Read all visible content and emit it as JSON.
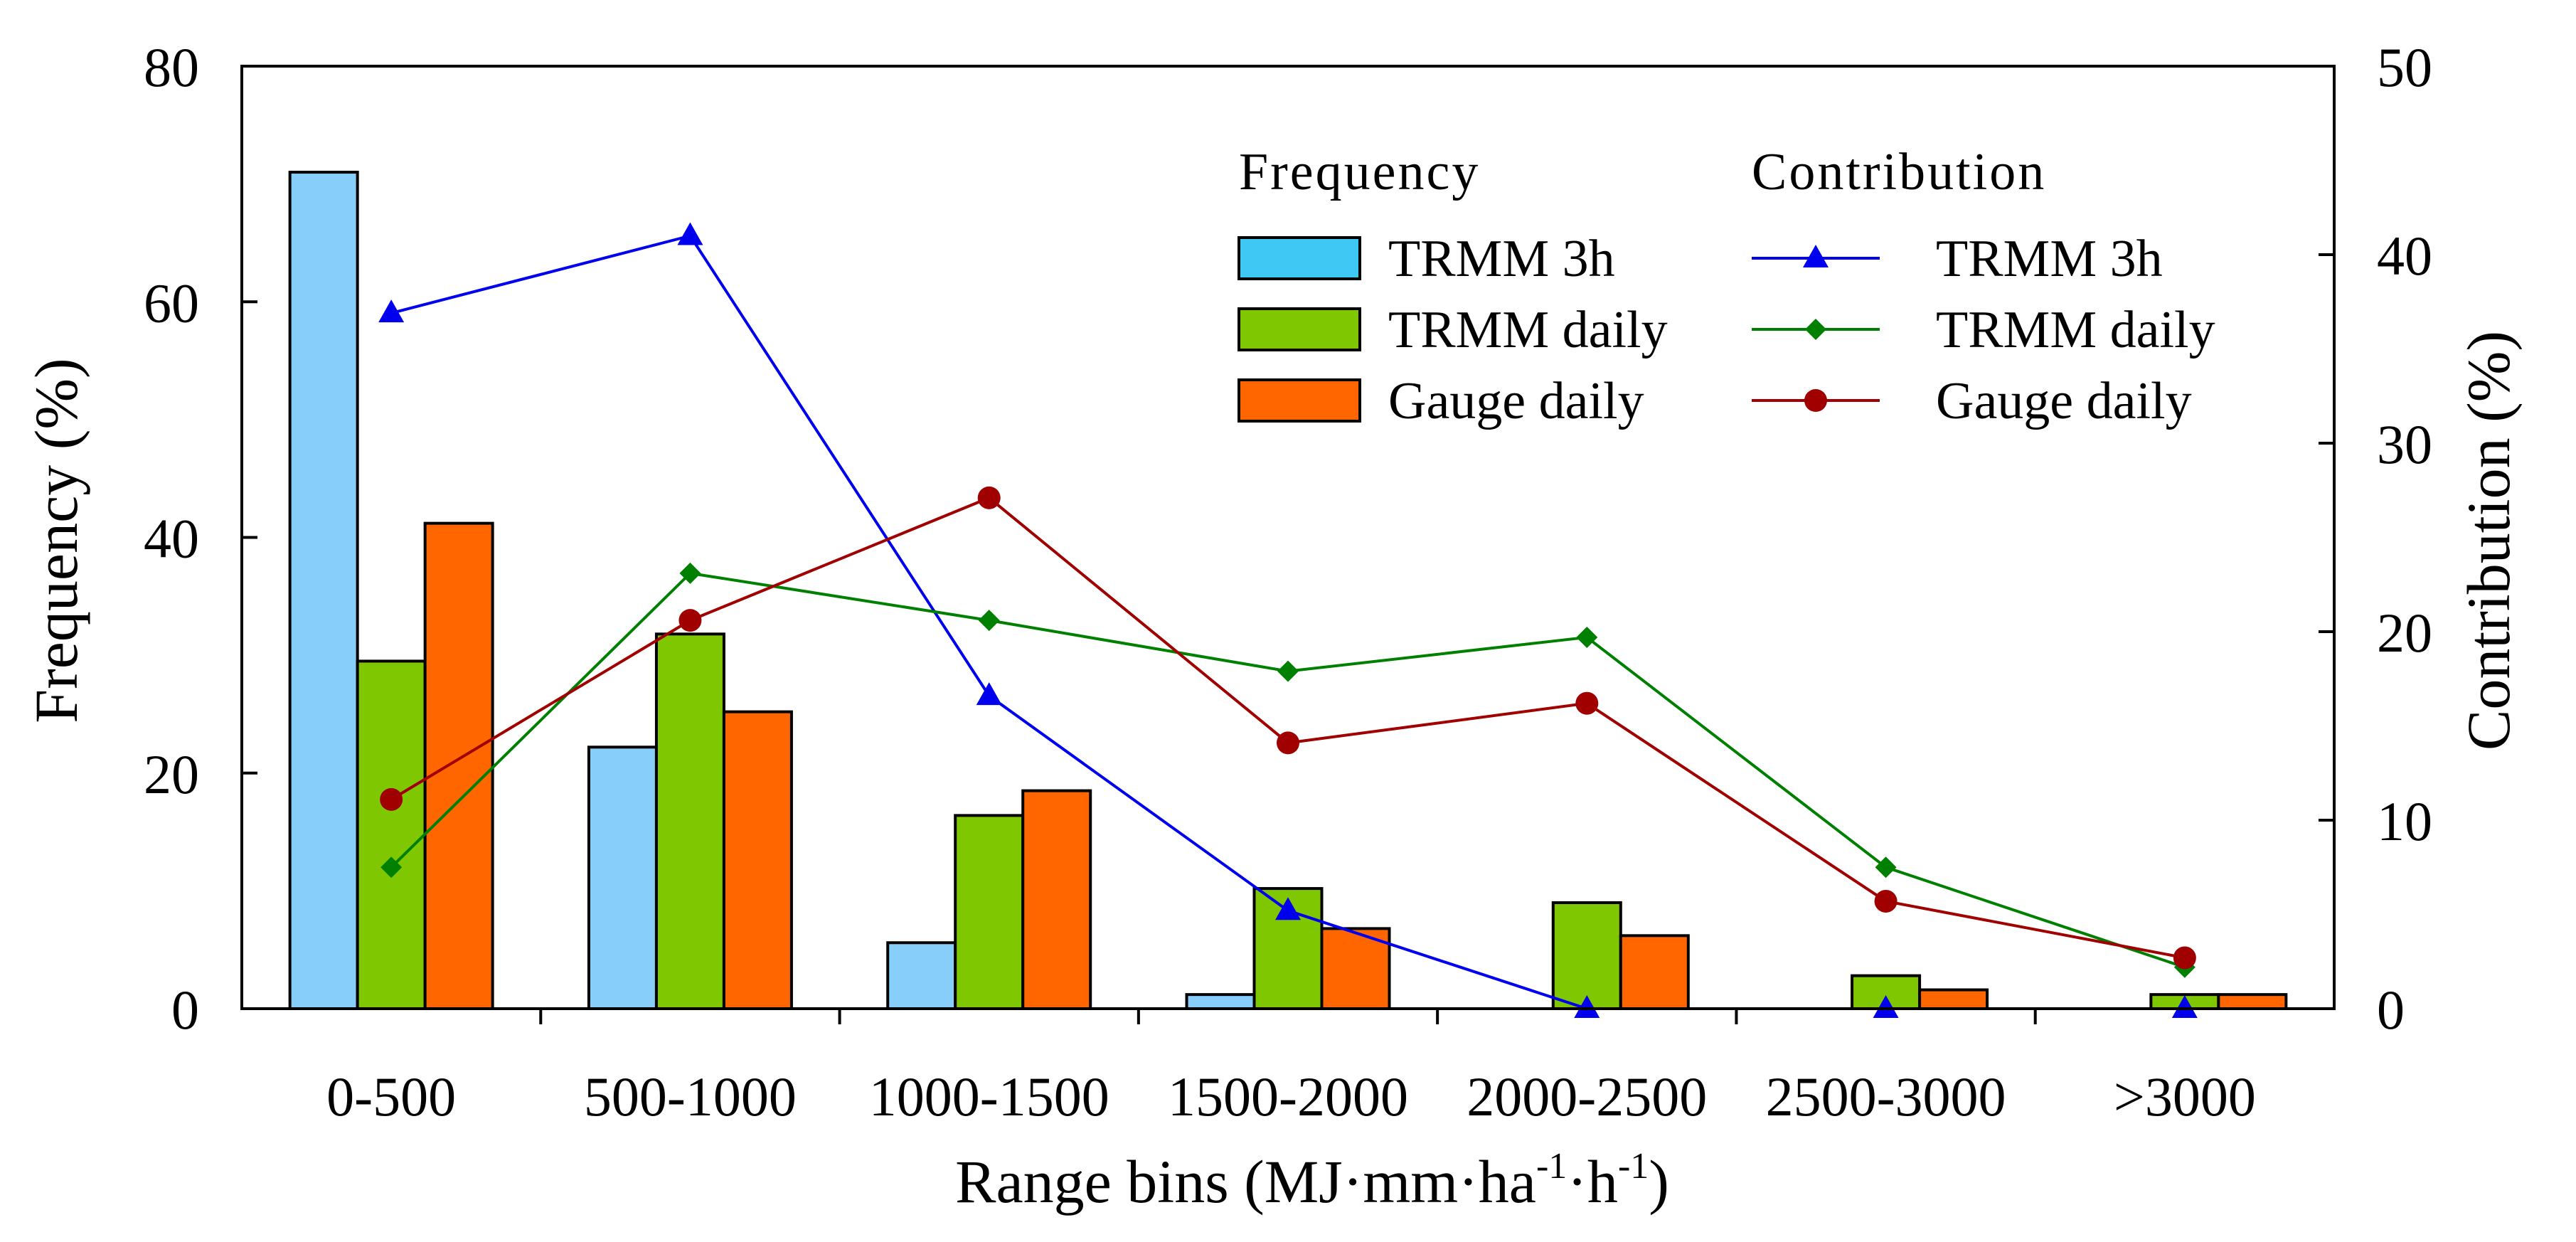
{
  "chart_data": {
    "type": "bar+line",
    "categories": [
      "0-500",
      "500-1000",
      "1000-1500",
      "1500-2000",
      "2000-2500",
      "2500-3000",
      ">3000"
    ],
    "xlabel": {
      "main": "Range bins (MJ·mm·ha",
      "sup1": "-1",
      "mid": "·h",
      "sup2": "-1",
      "end": ")"
    },
    "ylabel_left": "Frequency (%)",
    "ylabel_right": "Contribution (%)",
    "ylim_left": [
      0,
      80
    ],
    "yticks_left": [
      0,
      20,
      40,
      60,
      80
    ],
    "ylim_right": [
      0,
      50
    ],
    "yticks_right": [
      0,
      10,
      20,
      30,
      40,
      50
    ],
    "legend": {
      "frequency_title": "Frequency",
      "contribution_title": "Contribution"
    },
    "bar_series": [
      {
        "name": "TRMM 3h",
        "color": "#87CEFA",
        "legend_color": "#3FC8F4",
        "values": [
          71,
          22.2,
          5.6,
          1.2,
          0,
          0,
          0
        ]
      },
      {
        "name": "TRMM daily",
        "color": "#7FC700",
        "values": [
          29.5,
          31.8,
          16.4,
          10.2,
          9.0,
          2.8,
          1.2
        ]
      },
      {
        "name": "Gauge daily",
        "color": "#FF6600",
        "values": [
          41.2,
          25.2,
          18.5,
          6.8,
          6.2,
          1.6,
          1.2
        ]
      }
    ],
    "line_series": [
      {
        "name": "TRMM 3h",
        "color": "#0000EE",
        "marker": "triangle",
        "values": [
          36.9,
          41.0,
          16.6,
          5.2,
          0,
          0,
          0
        ]
      },
      {
        "name": "TRMM daily",
        "color": "#008000",
        "marker": "diamond",
        "values": [
          7.5,
          23.1,
          20.6,
          17.9,
          19.7,
          7.5,
          2.2
        ]
      },
      {
        "name": "Gauge daily",
        "color": "#A00000",
        "marker": "circle",
        "values": [
          11.1,
          20.6,
          27.1,
          14.1,
          16.2,
          5.7,
          2.7
        ]
      }
    ]
  }
}
